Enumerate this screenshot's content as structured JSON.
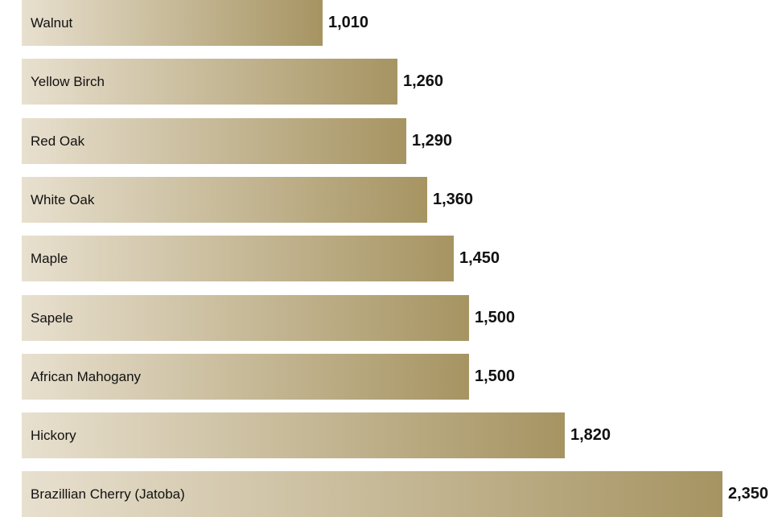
{
  "chart_data": {
    "type": "bar",
    "orientation": "horizontal",
    "title": "",
    "xlabel": "",
    "ylabel": "",
    "categories": [
      "Walnut",
      "Yellow Birch",
      "Red Oak",
      "White Oak",
      "Maple",
      "Sapele",
      "African Mahogany",
      "Hickory",
      "Brazillian Cherry (Jatoba)"
    ],
    "values": [
      1010,
      1260,
      1290,
      1360,
      1450,
      1500,
      1500,
      1820,
      2350
    ],
    "value_labels": [
      "1,010",
      "1,260",
      "1,290",
      "1,360",
      "1,450",
      "1,500",
      "1,500",
      "1,820",
      "2,350"
    ],
    "xlim": [
      0,
      2350
    ],
    "grid": false,
    "legend": "none",
    "colors": {
      "gradient_start": "#e8e0cf",
      "gradient_end": "#a69462",
      "text": "#111111"
    }
  }
}
